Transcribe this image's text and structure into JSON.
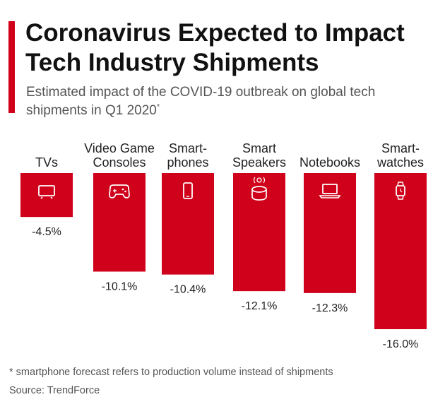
{
  "colors": {
    "accent": "#d0021b",
    "bar": "#d0021b",
    "icon": "#ffffff"
  },
  "chart_data": {
    "type": "bar",
    "title": "Coronavirus Expected to Impact Tech Industry Shipments",
    "subtitle": "Estimated impact of the COVID-19 outbreak on global tech shipments in Q1 2020",
    "subtitle_marker": "*",
    "categories": [
      {
        "lines": [
          "TVs"
        ],
        "icon": "tv-icon"
      },
      {
        "lines": [
          "Video Game",
          "Consoles"
        ],
        "icon": "gamepad-icon"
      },
      {
        "lines": [
          "Smart-",
          "phones"
        ],
        "icon": "smartphone-icon"
      },
      {
        "lines": [
          "Smart",
          "Speakers"
        ],
        "icon": "smart-speaker-icon"
      },
      {
        "lines": [
          "Notebooks"
        ],
        "icon": "laptop-icon"
      },
      {
        "lines": [
          "Smart-",
          "watches"
        ],
        "icon": "smartwatch-icon"
      }
    ],
    "values": [
      -4.5,
      -10.1,
      -10.4,
      -12.1,
      -12.3,
      -16.0
    ],
    "value_labels": [
      "-4.5%",
      "-10.1%",
      "-10.4%",
      "-12.1%",
      "-12.3%",
      "-16.0%"
    ],
    "unit": "%",
    "ylim": [
      -16.0,
      0
    ],
    "grid": false,
    "legend": "none"
  },
  "footnote": "* smartphone forecast refers to production volume instead of shipments",
  "source": "Source: TrendForce"
}
